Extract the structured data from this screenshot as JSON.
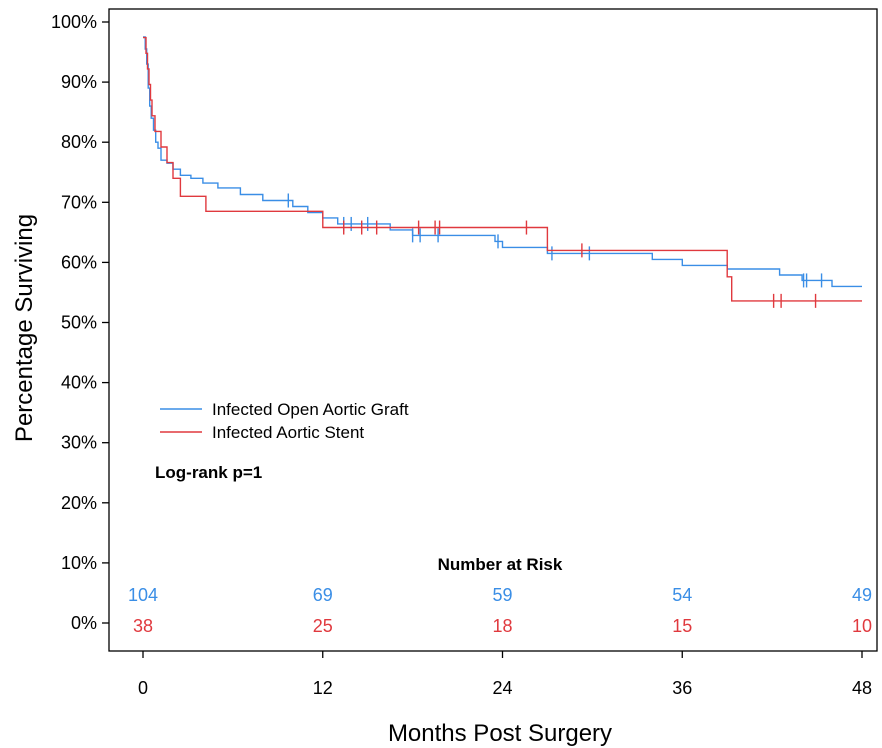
{
  "chart_data": {
    "type": "line",
    "subtype": "kaplan-meier step",
    "xlabel": "Months Post Surgery",
    "ylabel": "Percentage Surviving",
    "xlim": [
      0,
      48
    ],
    "ylim": [
      0,
      100
    ],
    "x_ticks": [
      0,
      12,
      24,
      36,
      48
    ],
    "x_tick_labels": [
      "0",
      "12",
      "24",
      "36",
      "48"
    ],
    "y_ticks": [
      0,
      10,
      20,
      30,
      40,
      50,
      60,
      70,
      80,
      90,
      100
    ],
    "y_tick_labels": [
      "0%",
      "10%",
      "20%",
      "30%",
      "40%",
      "50%",
      "60%",
      "70%",
      "80%",
      "90%",
      "100%"
    ],
    "grid": false,
    "legend_position": "left-middle",
    "annotation": "Log-rank p=1",
    "risk_table_title": "Number at Risk",
    "series": [
      {
        "name": "Infected Open Aortic Graft",
        "color": "#3a8ee6",
        "x": [
          0,
          0.15,
          0.25,
          0.35,
          0.45,
          0.55,
          0.7,
          0.85,
          1.0,
          1.2,
          1.6,
          2.0,
          2.5,
          3.2,
          4.0,
          5.0,
          6.5,
          8.0,
          10.0,
          11.0,
          12.0,
          13.0,
          16.5,
          18.0,
          20.0,
          23.5,
          24.0,
          26.0,
          27.0,
          31.0,
          34.0,
          36.0,
          39.0,
          42.5,
          44.0,
          46.0,
          48.0
        ],
        "y": [
          97.5,
          95.5,
          93,
          89,
          86,
          84,
          82,
          80,
          79,
          77,
          76.5,
          75.5,
          74.5,
          74,
          73.2,
          72.4,
          71.3,
          70.3,
          69.3,
          68.3,
          67.4,
          66.4,
          65.4,
          64.5,
          64.5,
          63.5,
          62.5,
          62.5,
          61.5,
          61.5,
          60.5,
          59.5,
          58.9,
          57.9,
          57.0,
          56.0,
          56.0
        ],
        "censor_times": [
          9.7,
          13.4,
          13.9,
          15.0,
          18.0,
          18.5,
          19.7,
          23.7,
          27.3,
          29.8,
          44.1,
          44.3,
          45.3
        ],
        "at_risk": [
          104,
          69,
          59,
          54,
          49
        ]
      },
      {
        "name": "Infected Aortic Stent",
        "color": "#e0393e",
        "x": [
          0,
          0.2,
          0.3,
          0.4,
          0.5,
          0.6,
          0.8,
          1.2,
          1.6,
          2.0,
          2.5,
          4.2,
          12.0,
          27.0,
          39.0,
          39.3,
          48.0
        ],
        "y": [
          97.4,
          94.8,
          92.2,
          89.6,
          87.0,
          84.4,
          81.8,
          79.2,
          76.6,
          74.0,
          71.0,
          68.5,
          65.8,
          62.0,
          57.6,
          53.6,
          53.6
        ],
        "censor_times": [
          13.4,
          14.6,
          15.6,
          18.4,
          19.5,
          19.8,
          25.6,
          29.3,
          42.1,
          42.6,
          44.9
        ],
        "at_risk": [
          38,
          25,
          18,
          15,
          10
        ]
      }
    ]
  }
}
